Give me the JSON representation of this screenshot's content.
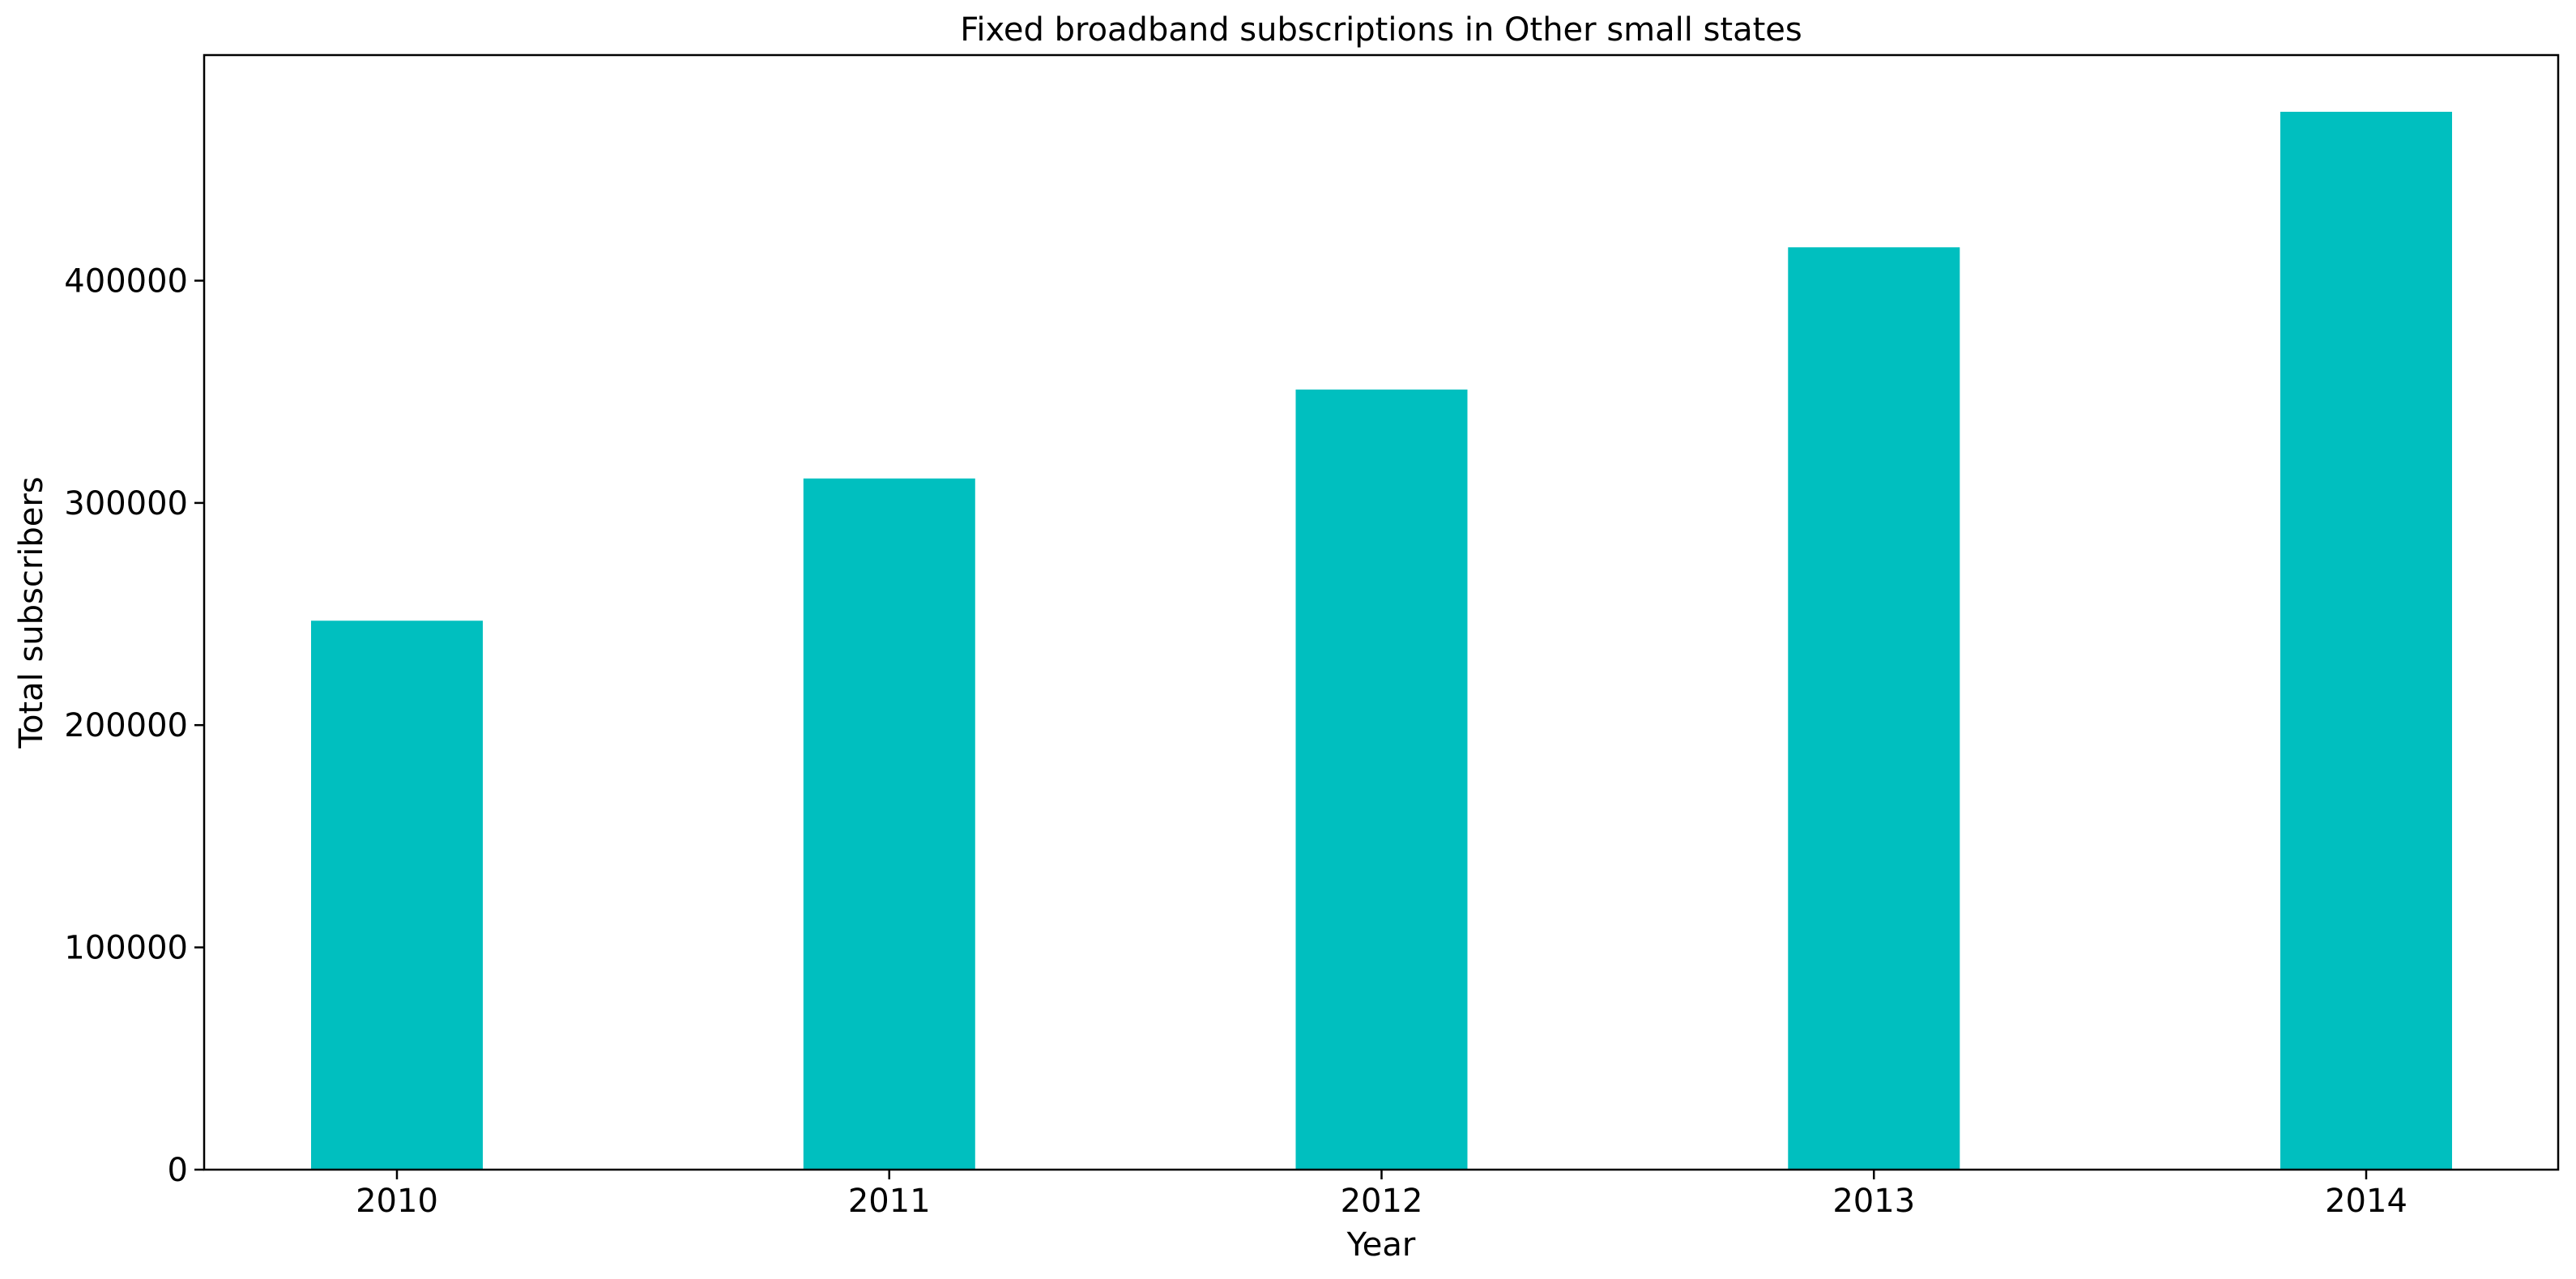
{
  "chart_data": {
    "type": "bar",
    "title": "Fixed broadband subscriptions in Other small states",
    "xlabel": "Year",
    "ylabel": "Total subscribers",
    "categories": [
      "2010",
      "2011",
      "2012",
      "2013",
      "2014"
    ],
    "values": [
      247000,
      311000,
      351000,
      415000,
      476000
    ],
    "ylim": [
      0,
      500000
    ],
    "yticks": [
      0,
      100000,
      200000,
      300000,
      400000
    ],
    "ytick_labels": [
      "0",
      "100000",
      "200000",
      "300000",
      "400000"
    ],
    "grid": false,
    "legend": false,
    "bar_color": "#00bfbf"
  }
}
